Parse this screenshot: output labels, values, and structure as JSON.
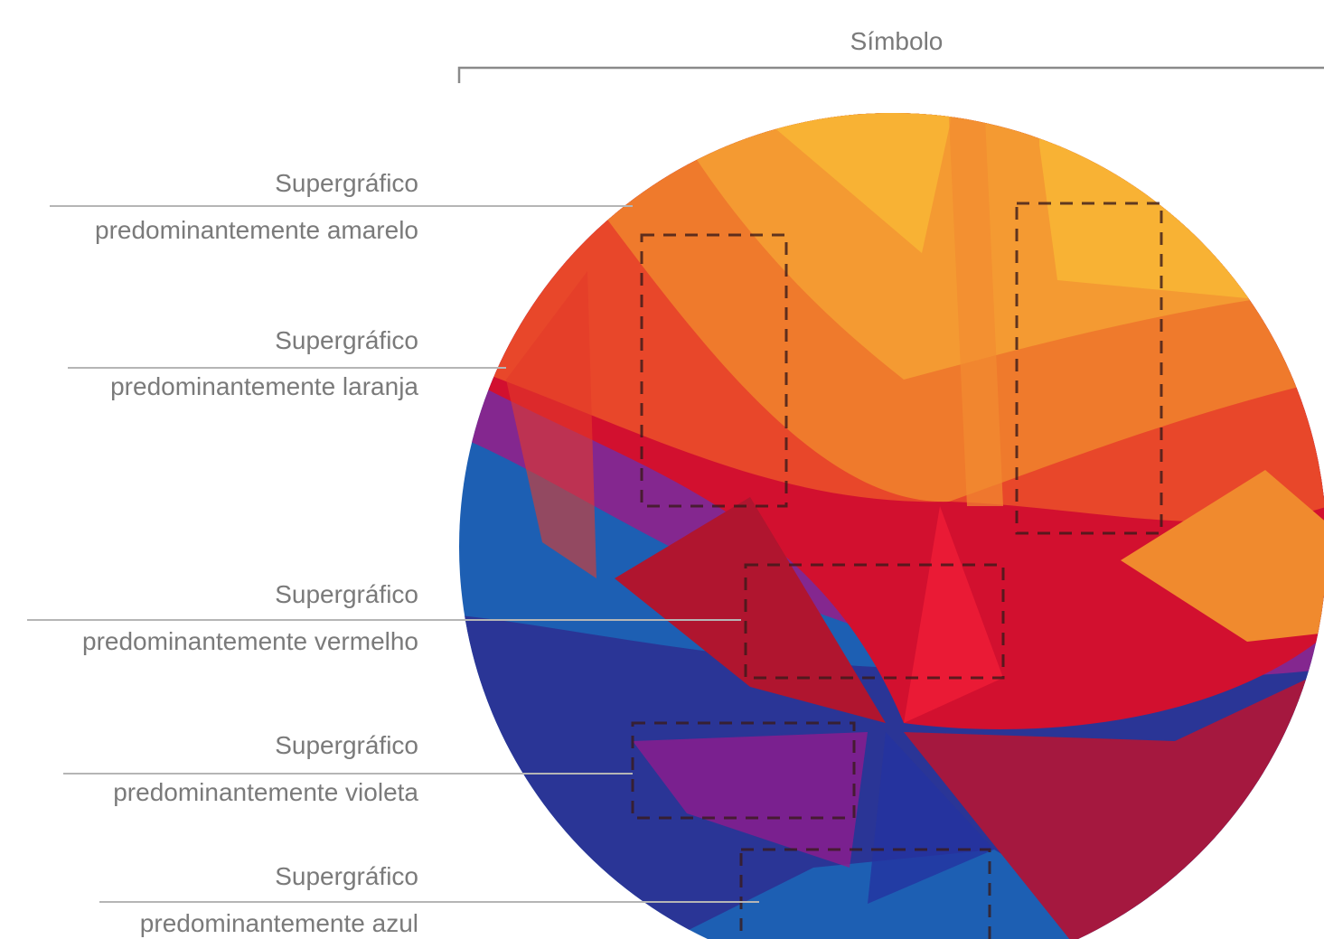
{
  "title": "Símbolo",
  "labels": [
    {
      "title": "Supergráfico",
      "subtitle": "predominantemente amarelo"
    },
    {
      "title": "Supergráfico",
      "subtitle": "predominantemente laranja"
    },
    {
      "title": "Supergráfico",
      "subtitle": "predominantemente vermelho"
    },
    {
      "title": "Supergráfico",
      "subtitle": "predominantemente violeta"
    },
    {
      "title": "Supergráfico",
      "subtitle": "predominantemente azul"
    }
  ]
}
